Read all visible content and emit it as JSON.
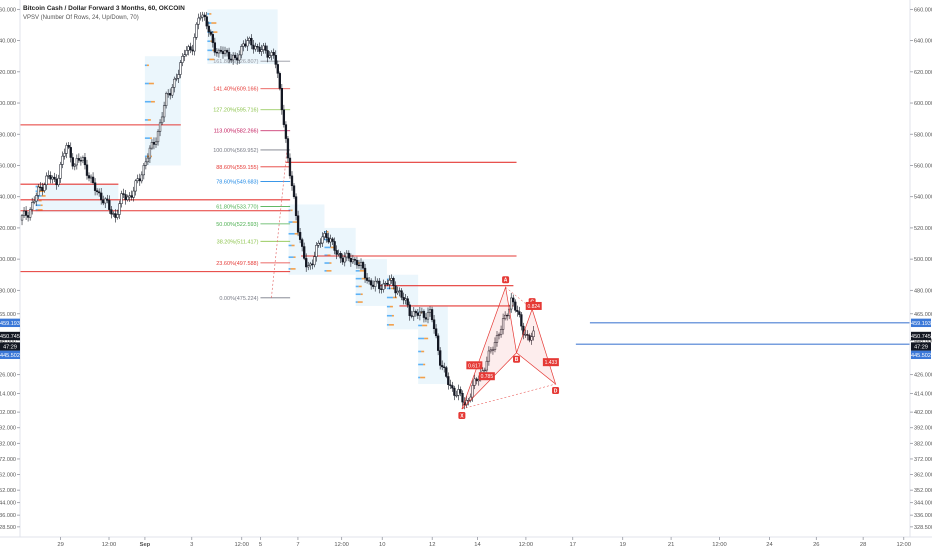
{
  "header": {
    "title": "Bitcoin Cash / Dollar Forward 3 Months, 60, OKCOIN",
    "indicator": "VPSV (Number Of Rows, 24, Up/Down, 70)"
  },
  "colors": {
    "candle_up": "#ffffff",
    "candle_down": "#131722",
    "resistance": "#e53935",
    "support": "#4a7fd4",
    "harmonic": "#e53935",
    "harmonic_fill": "rgba(239,83,80,0.10)",
    "price_badge": "#131722",
    "support_badge": "#3b78d8",
    "vp_up": "#2196f3",
    "vp_down": "#f57c00",
    "vp_zone": "#dbeefa"
  },
  "chart_data": {
    "type": "candlestick",
    "title": "Bitcoin Cash / Dollar Forward 3 Months, 60, OKCOIN",
    "ylim": [
      322,
      666
    ],
    "y_ticks": [
      "660.000",
      "640.000",
      "620.000",
      "600.000",
      "580.000",
      "560.000",
      "540.000",
      "520.000",
      "500.000",
      "480.000",
      "465.000",
      "448.000",
      "426.000",
      "414.000",
      "402.000",
      "392.000",
      "382.000",
      "372.000",
      "362.000",
      "352.000",
      "344.000",
      "336.000",
      "328.500"
    ],
    "x_ticks": [
      "29",
      "12:00",
      "Sep",
      "3",
      "12:00",
      "5",
      "7",
      "12:00",
      "10",
      "12",
      "14",
      "12:00",
      "17",
      "19",
      "21",
      "12:00",
      "24",
      "26",
      "28",
      "12:00"
    ],
    "price_path": [
      [
        0,
        525
      ],
      [
        0.6,
        531
      ],
      [
        1.2,
        544
      ],
      [
        1.8,
        553
      ],
      [
        2.3,
        549
      ],
      [
        3.0,
        573
      ],
      [
        3.5,
        560
      ],
      [
        4.0,
        565
      ],
      [
        4.6,
        548
      ],
      [
        5.2,
        540
      ],
      [
        6.1,
        527
      ],
      [
        6.6,
        541
      ],
      [
        7.1,
        540
      ],
      [
        7.6,
        551
      ],
      [
        8.2,
        566
      ],
      [
        8.9,
        583
      ],
      [
        9.4,
        605
      ],
      [
        10.1,
        617
      ],
      [
        10.6,
        637
      ],
      [
        11.0,
        631
      ],
      [
        11.5,
        660
      ],
      [
        12.1,
        646
      ],
      [
        12.7,
        630
      ],
      [
        13.1,
        634
      ],
      [
        13.8,
        626
      ],
      [
        14.3,
        639
      ],
      [
        15.0,
        637
      ],
      [
        15.6,
        633
      ],
      [
        16.3,
        631
      ],
      [
        16.9,
        589
      ],
      [
        17.2,
        560
      ],
      [
        17.6,
        534
      ],
      [
        18.0,
        509
      ],
      [
        18.4,
        492
      ],
      [
        19.0,
        507
      ],
      [
        19.6,
        517
      ],
      [
        20.3,
        503
      ],
      [
        21.0,
        500
      ],
      [
        21.6,
        499
      ],
      [
        22.3,
        486
      ],
      [
        23.0,
        482
      ],
      [
        23.6,
        486
      ],
      [
        24.3,
        479
      ],
      [
        25.0,
        466
      ],
      [
        25.7,
        464
      ],
      [
        26.3,
        466
      ],
      [
        26.9,
        436
      ],
      [
        27.5,
        418
      ],
      [
        28.1,
        414
      ],
      [
        28.5,
        406
      ],
      [
        29.0,
        418
      ],
      [
        29.5,
        426
      ],
      [
        30.1,
        439
      ],
      [
        30.6,
        452
      ],
      [
        31.1,
        462
      ],
      [
        31.5,
        476
      ],
      [
        31.9,
        463
      ],
      [
        32.3,
        453
      ],
      [
        32.6,
        449
      ],
      [
        32.9,
        450.745
      ]
    ],
    "last_price": "450.745",
    "price_labels": [
      "459.193",
      "450.745",
      "47:29",
      "445.502"
    ],
    "levels": {
      "resistance": [
        {
          "price": 586,
          "x0": 0,
          "x1": 10.3
        },
        {
          "price": 548,
          "x0": 0,
          "x1": 6.3
        },
        {
          "price": 538,
          "x0": 0,
          "x1": 17.3
        },
        {
          "price": 531,
          "x0": 0,
          "x1": 17.3
        },
        {
          "price": 492,
          "x0": 0,
          "x1": 17.3
        },
        {
          "price": 562,
          "x0": 17.0,
          "x1": 31.8
        },
        {
          "price": 502,
          "x0": 18.0,
          "x1": 31.8
        },
        {
          "price": 483,
          "x0": 23.0,
          "x1": 31.6
        },
        {
          "price": 470,
          "x0": 24.3,
          "x1": 31.6
        }
      ],
      "support": [
        {
          "price": 459.193,
          "x0": 36.5,
          "x1": 57
        },
        {
          "price": 445.502,
          "x0": 35.6,
          "x1": 57
        }
      ]
    },
    "fibonacci": [
      {
        "label": "161.80%(626.807)",
        "price": 626.807,
        "color": "#9598a1"
      },
      {
        "label": "141.40%(609.166)",
        "price": 609.166,
        "color": "#e53935"
      },
      {
        "label": "127.20%(595.716)",
        "price": 595.716,
        "color": "#8bc34a"
      },
      {
        "label": "113.00%(582.266)",
        "price": 582.266,
        "color": "#c2185b"
      },
      {
        "label": "100.00%(569.952)",
        "price": 569.952,
        "color": "#787b86"
      },
      {
        "label": "88.60%(559.155)",
        "price": 559.155,
        "color": "#e53935"
      },
      {
        "label": "78.60%(549.683)",
        "price": 549.683,
        "color": "#1e88e5"
      },
      {
        "label": "61.80%(533.770)",
        "price": 533.77,
        "color": "#4caf50"
      },
      {
        "label": "50.00%(522.593)",
        "price": 522.593,
        "color": "#4caf50"
      },
      {
        "label": "38.20%(511.417)",
        "price": 511.417,
        "color": "#8bc34a"
      },
      {
        "label": "23.60%(497.588)",
        "price": 497.588,
        "color": "#e53935"
      },
      {
        "label": "0.00%(475.224)",
        "price": 475.224,
        "color": "#787b86"
      }
    ],
    "harmonic": {
      "points": [
        {
          "label": "X",
          "x": 28.3,
          "price": 404
        },
        {
          "label": "A",
          "x": 31.1,
          "price": 482
        },
        {
          "label": "B",
          "x": 31.8,
          "price": 440
        },
        {
          "label": "C",
          "x": 32.8,
          "price": 468
        },
        {
          "label": "D",
          "x": 34.3,
          "price": 420
        }
      ],
      "ratios": [
        "0.824",
        "0.617",
        "0.785",
        "1.433"
      ]
    }
  }
}
